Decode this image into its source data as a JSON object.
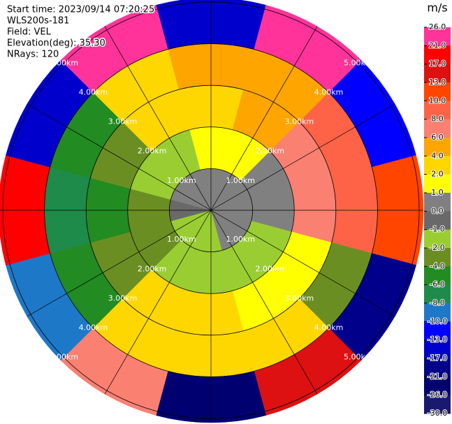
{
  "chart_data": {
    "type": "ppi",
    "header": [
      "Start time: 2023/09/14 07:20:25",
      "WLS200s-181",
      "Field: VEL",
      "Elevation(deg): 35.30",
      "NRays: 120"
    ],
    "rlim": [
      0,
      5.1
    ],
    "rticks": [
      {
        "value": 1,
        "label": "1.00km"
      },
      {
        "value": 2,
        "label": "2.00km"
      },
      {
        "value": 3,
        "label": "3.00km"
      },
      {
        "value": 4,
        "label": "4.00km"
      },
      {
        "value": 5,
        "label": "5.00km"
      }
    ],
    "field": {
      "azimuths": [
        0,
        30,
        60,
        90,
        120,
        150,
        180,
        210,
        240,
        270,
        300,
        330
      ],
      "range_edges": [
        0,
        1,
        2,
        3,
        4,
        5.1
      ],
      "values": [
        [
          0.5,
          0.5,
          0.5,
          0.5,
          0.5,
          0.5,
          -1.5,
          -1.5,
          -1.5,
          -0.5,
          0.5,
          0.5
        ],
        [
          1.5,
          1.5,
          0.5,
          0.5,
          -1.5,
          -1.5,
          -1.5,
          -1.5,
          -3,
          -3,
          -1.5,
          -1.5
        ],
        [
          3,
          5,
          7,
          7,
          1.5,
          1.5,
          3,
          3,
          -3,
          -5,
          -3,
          3
        ],
        [
          5,
          5,
          9,
          9,
          -3,
          3,
          3,
          3,
          -5,
          -7,
          -5,
          3
        ],
        [
          -15,
          23,
          -11,
          11,
          -19,
          15,
          -23,
          7,
          -9,
          19,
          -15,
          23
        ]
      ]
    },
    "colorbar": {
      "title": "m/s",
      "levels": [
        {
          "value": 26,
          "label": "26.0"
        },
        {
          "value": 21,
          "label": "21.0"
        },
        {
          "value": 17,
          "label": "17.0"
        },
        {
          "value": 13,
          "label": "13.0"
        },
        {
          "value": 10,
          "label": "10.0"
        },
        {
          "value": 8,
          "label": "8.0"
        },
        {
          "value": 6,
          "label": "6.0"
        },
        {
          "value": 4,
          "label": "4.0"
        },
        {
          "value": 2,
          "label": "2.0"
        },
        {
          "value": 1,
          "label": "1.0"
        },
        {
          "value": 0,
          "label": "0.0"
        },
        {
          "value": -1,
          "label": "-1.0"
        },
        {
          "value": -2,
          "label": "-2.0"
        },
        {
          "value": -4,
          "label": "-4.0"
        },
        {
          "value": -6,
          "label": "-6.0"
        },
        {
          "value": -8,
          "label": "-8.0"
        },
        {
          "value": -10,
          "label": "-10.0"
        },
        {
          "value": -13,
          "label": "-13.0"
        },
        {
          "value": -17,
          "label": "-17.0"
        },
        {
          "value": -21,
          "label": "-21.0"
        },
        {
          "value": -26,
          "label": "-26.0"
        },
        {
          "value": -30,
          "label": "-30.0"
        }
      ],
      "colors": [
        "#ff3399",
        "#ff0000",
        "#dd1111",
        "#ff4500",
        "#ff6347",
        "#fa8072",
        "#ffa500",
        "#ffd700",
        "#ffff00",
        "#808080",
        "#696969",
        "#9acd32",
        "#6b8e23",
        "#228b22",
        "#1e8b4a",
        "#1e78c8",
        "#0000ff",
        "#0000cd",
        "#00008b",
        "#000070",
        "#191970"
      ]
    }
  }
}
